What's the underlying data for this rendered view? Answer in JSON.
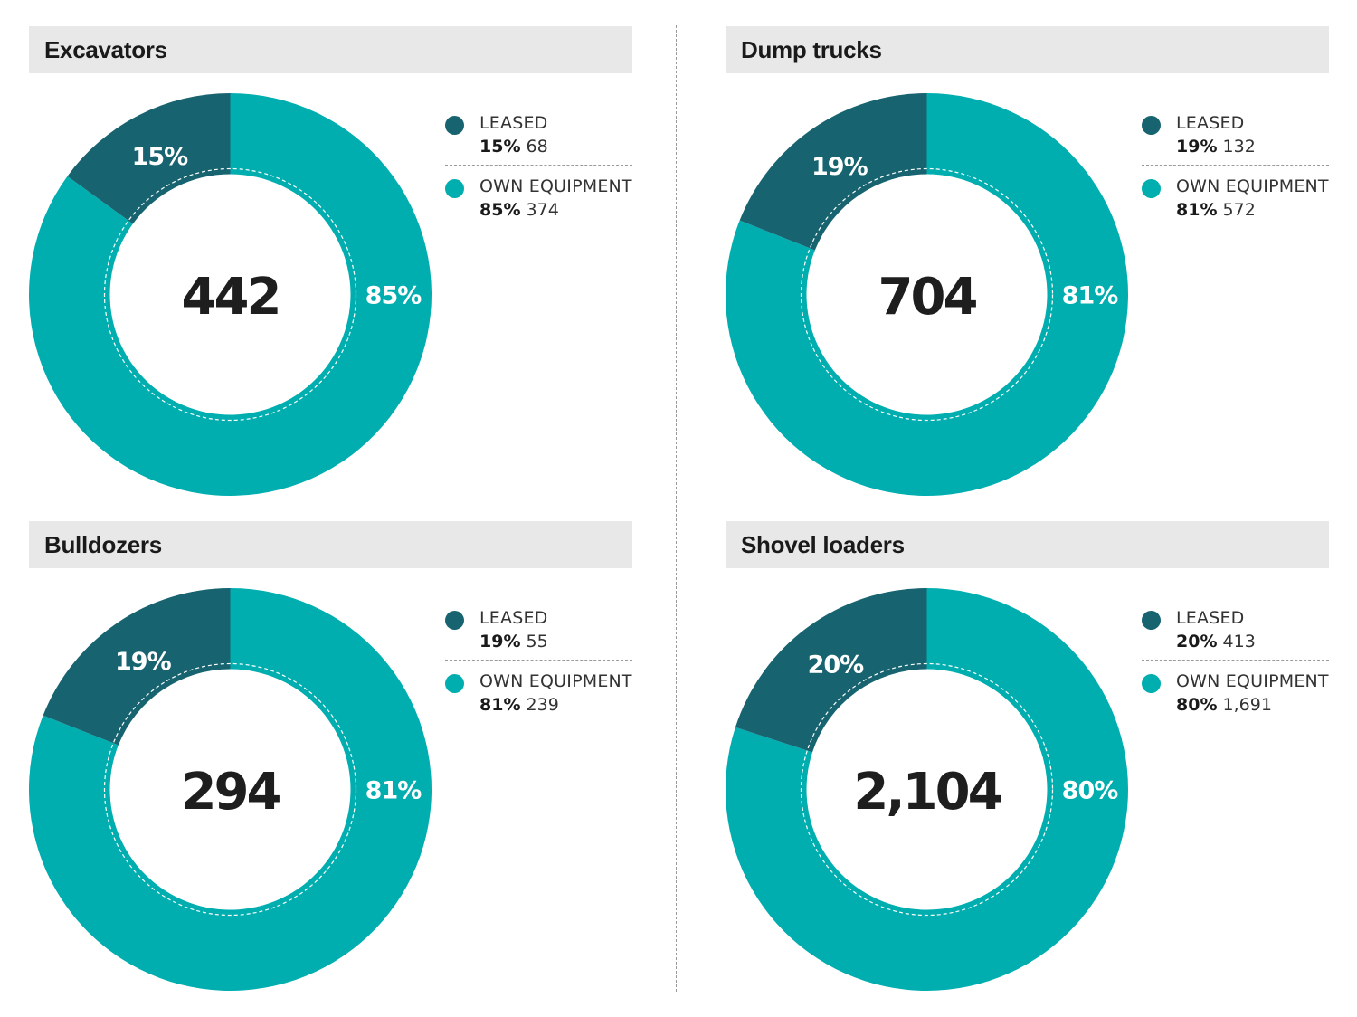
{
  "colors": {
    "leased": "#176470",
    "own": "#00aeb0"
  },
  "chart_data": [
    {
      "type": "pie",
      "title": "Excavators",
      "total": "442",
      "slices": [
        {
          "name": "LEASED",
          "pct_label": "15%",
          "pct": 15,
          "count": "68"
        },
        {
          "name": "OWN EQUIPMENT",
          "pct_label": "85%",
          "pct": 85,
          "count": "374"
        }
      ]
    },
    {
      "type": "pie",
      "title": "Dump trucks",
      "total": "704",
      "slices": [
        {
          "name": "LEASED",
          "pct_label": "19%",
          "pct": 19,
          "count": "132"
        },
        {
          "name": "OWN EQUIPMENT",
          "pct_label": "81%",
          "pct": 81,
          "count": "572"
        }
      ]
    },
    {
      "type": "pie",
      "title": "Bulldozers",
      "total": "294",
      "slices": [
        {
          "name": "LEASED",
          "pct_label": "19%",
          "pct": 19,
          "count": "55"
        },
        {
          "name": "OWN EQUIPMENT",
          "pct_label": "81%",
          "pct": 81,
          "count": "239"
        }
      ]
    },
    {
      "type": "pie",
      "title": "Shovel loaders",
      "total": "2,104",
      "slices": [
        {
          "name": "LEASED",
          "pct_label": "20%",
          "pct": 20,
          "count": "413"
        },
        {
          "name": "OWN EQUIPMENT",
          "pct_label": "80%",
          "pct": 80,
          "count": "1,691"
        }
      ]
    }
  ]
}
